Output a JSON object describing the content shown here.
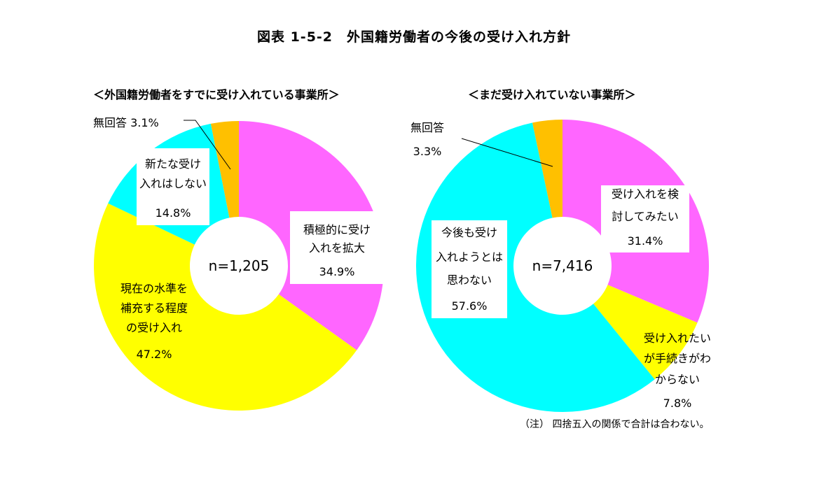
{
  "title": "図表 1-5-2　外国籍労働者の今後の受け入れ方針",
  "note": "（注） 四捨五入の関係で合計は合わない。",
  "colors": {
    "magenta": "#FF66FF",
    "yellow": "#FFFF00",
    "cyan": "#00FFFF",
    "orange": "#FFC000"
  },
  "chart_data": [
    {
      "type": "pie",
      "donut": true,
      "title": "＜外国籍労働者をすでに受け入れている事業所＞",
      "center_label": "n=1,205",
      "slices": [
        {
          "label_lines": [
            "積極的に受け",
            "入れを拡大"
          ],
          "value": 34.9,
          "value_label": "34.9%",
          "color": "#FF66FF"
        },
        {
          "label_lines": [
            "現在の水準を",
            "補充する程度",
            "の受け入れ"
          ],
          "value": 47.2,
          "value_label": "47.2%",
          "color": "#FFFF00"
        },
        {
          "label_lines": [
            "新たな受け",
            "入れはしない"
          ],
          "value": 14.8,
          "value_label": "14.8%",
          "color": "#00FFFF"
        },
        {
          "label_lines": [
            "無回答"
          ],
          "value": 3.1,
          "value_label": "3.1%",
          "color": "#FFC000"
        }
      ]
    },
    {
      "type": "pie",
      "donut": true,
      "title": "＜まだ受け入れていない事業所＞",
      "center_label": "n=7,416",
      "slices": [
        {
          "label_lines": [
            "受け入れを検",
            "討してみたい"
          ],
          "value": 31.4,
          "value_label": "31.4%",
          "color": "#FF66FF"
        },
        {
          "label_lines": [
            "受け入れたい",
            "が手続きがわ",
            "からない"
          ],
          "value": 7.8,
          "value_label": "7.8%",
          "color": "#FFFF00"
        },
        {
          "label_lines": [
            "今後も受け",
            "入れようとは",
            "思わない"
          ],
          "value": 57.6,
          "value_label": "57.6%",
          "color": "#00FFFF"
        },
        {
          "label_lines": [
            "無回答"
          ],
          "value": 3.3,
          "value_label": "3.3%",
          "color": "#FFC000"
        }
      ]
    }
  ]
}
